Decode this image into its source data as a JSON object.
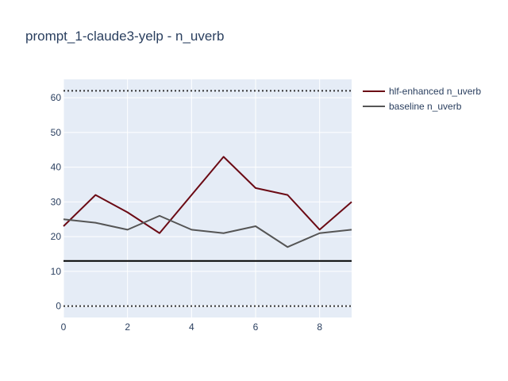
{
  "chart_data": {
    "type": "line",
    "title": "prompt_1-claude3-yelp - n_uverb",
    "xlabel": "",
    "ylabel": "",
    "xlim": [
      0,
      9
    ],
    "ylim": [
      -3.3,
      65.3
    ],
    "x_ticks": [
      0,
      2,
      4,
      6,
      8
    ],
    "y_ticks": [
      0,
      10,
      20,
      30,
      40,
      50,
      60
    ],
    "grid": true,
    "legend_position": "top-right",
    "x": [
      0,
      1,
      2,
      3,
      4,
      5,
      6,
      7,
      8,
      9
    ],
    "series": [
      {
        "name": "hlf-enhanced n_uverb",
        "color": "#6b0a14",
        "values": [
          23,
          32,
          27,
          21,
          32,
          43,
          34,
          32,
          22,
          30
        ]
      },
      {
        "name": "baseline n_uverb",
        "color": "#555555",
        "values": [
          25,
          24,
          22,
          26,
          22,
          21,
          23,
          17,
          21,
          22
        ]
      }
    ],
    "reference_lines": [
      {
        "y": 62,
        "style": "dotted",
        "color": "#333333"
      },
      {
        "y": 13,
        "style": "solid",
        "color": "#000000"
      },
      {
        "y": 0,
        "style": "dotted",
        "color": "#333333"
      }
    ]
  }
}
